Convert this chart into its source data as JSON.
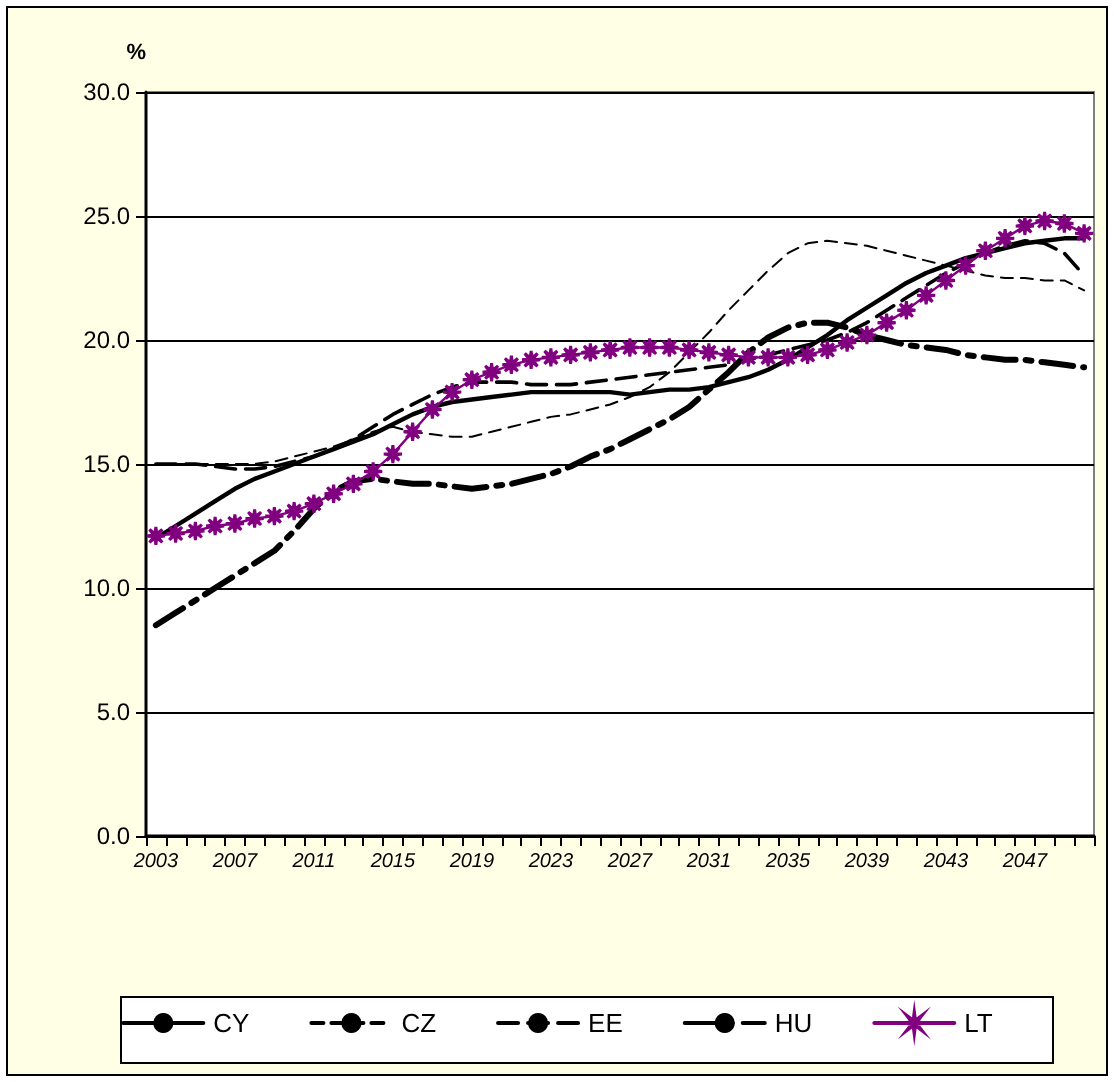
{
  "chart_data": {
    "type": "line",
    "ylabel": "%",
    "categories": [
      "2003",
      null,
      null,
      null,
      "2007",
      null,
      null,
      null,
      "2011",
      null,
      null,
      null,
      "2015",
      null,
      null,
      null,
      "2019",
      null,
      null,
      null,
      "2023",
      null,
      null,
      null,
      "2027",
      null,
      null,
      null,
      "2031",
      null,
      null,
      null,
      "2035",
      null,
      null,
      null,
      "2039",
      null,
      null,
      null,
      "2043",
      null,
      null,
      null,
      "2047",
      null,
      null,
      null
    ],
    "series": [
      {
        "name": "CY",
        "color": "#000000",
        "line_style": "solid",
        "marker": "none",
        "values": [
          12.0,
          12.5,
          13.0,
          13.5,
          14.0,
          14.4,
          14.7,
          15.0,
          15.3,
          15.6,
          15.9,
          16.2,
          16.6,
          17.0,
          17.3,
          17.5,
          17.6,
          17.7,
          17.8,
          17.9,
          17.9,
          17.9,
          17.9,
          17.9,
          17.8,
          17.9,
          18.0,
          18.0,
          18.1,
          18.3,
          18.5,
          18.8,
          19.2,
          19.7,
          20.2,
          20.8,
          21.3,
          21.8,
          22.3,
          22.7,
          23.0,
          23.3,
          23.5,
          23.7,
          23.9,
          24.0,
          24.1,
          24.1
        ]
      },
      {
        "name": "CZ",
        "color": "#000000",
        "line_style": "dashed",
        "marker": "none",
        "values": [
          15.0,
          15.0,
          15.0,
          15.0,
          15.0,
          15.0,
          15.1,
          15.3,
          15.5,
          15.7,
          16.0,
          16.3,
          16.5,
          16.3,
          16.2,
          16.1,
          16.1,
          16.3,
          16.5,
          16.7,
          16.9,
          17.0,
          17.2,
          17.4,
          17.7,
          18.1,
          18.7,
          19.5,
          20.3,
          21.2,
          22.0,
          22.8,
          23.5,
          23.9,
          24.0,
          23.9,
          23.8,
          23.6,
          23.4,
          23.2,
          23.0,
          22.8,
          22.6,
          22.5,
          22.5,
          22.4,
          22.4,
          22.0
        ]
      },
      {
        "name": "EE",
        "color": "#000000",
        "line_style": "dashed",
        "marker": "none",
        "values": [
          15.0,
          15.0,
          15.0,
          14.9,
          14.8,
          14.8,
          14.9,
          15.1,
          15.3,
          15.6,
          16.0,
          16.5,
          17.0,
          17.4,
          17.8,
          18.1,
          18.3,
          18.3,
          18.3,
          18.2,
          18.2,
          18.2,
          18.3,
          18.4,
          18.5,
          18.6,
          18.7,
          18.8,
          18.9,
          19.0,
          19.2,
          19.4,
          19.6,
          19.8,
          20.0,
          20.3,
          20.7,
          21.2,
          21.7,
          22.2,
          22.7,
          23.1,
          23.5,
          23.8,
          24.0,
          23.9,
          23.5,
          22.6
        ]
      },
      {
        "name": "HU",
        "color": "#000000",
        "line_style": "dashed",
        "marker": "none",
        "values": [
          8.5,
          9.0,
          9.5,
          10.0,
          10.5,
          11.0,
          11.5,
          12.3,
          13.2,
          13.9,
          14.3,
          14.4,
          14.3,
          14.2,
          14.2,
          14.1,
          14.0,
          14.1,
          14.2,
          14.4,
          14.6,
          14.9,
          15.3,
          15.6,
          16.0,
          16.4,
          16.8,
          17.3,
          18.0,
          18.7,
          19.5,
          20.1,
          20.5,
          20.7,
          20.7,
          20.5,
          20.2,
          20.0,
          19.8,
          19.7,
          19.6,
          19.4,
          19.3,
          19.2,
          19.2,
          19.1,
          19.0,
          18.9
        ]
      },
      {
        "name": "LT",
        "color": "#800080",
        "line_style": "solid",
        "marker": "star",
        "values": [
          12.1,
          12.2,
          12.3,
          12.5,
          12.6,
          12.8,
          12.9,
          13.1,
          13.4,
          13.8,
          14.2,
          14.7,
          15.4,
          16.3,
          17.2,
          17.9,
          18.4,
          18.7,
          19.0,
          19.2,
          19.3,
          19.4,
          19.5,
          19.6,
          19.7,
          19.7,
          19.7,
          19.6,
          19.5,
          19.4,
          19.3,
          19.3,
          19.3,
          19.4,
          19.6,
          19.9,
          20.2,
          20.7,
          21.2,
          21.8,
          22.4,
          23.0,
          23.6,
          24.1,
          24.6,
          24.8,
          24.7,
          24.3
        ]
      }
    ],
    "ylim": [
      0,
      30
    ],
    "yticks": [
      {
        "value": 0,
        "label": "0.0"
      },
      {
        "value": 5,
        "label": "5.0"
      },
      {
        "value": 10,
        "label": "10.0"
      },
      {
        "value": 15,
        "label": "15.0"
      },
      {
        "value": 20,
        "label": "20.0"
      },
      {
        "value": 25,
        "label": "25.0"
      },
      {
        "value": 30,
        "label": "30.0"
      }
    ],
    "grid": "y",
    "legend": "bottom"
  }
}
